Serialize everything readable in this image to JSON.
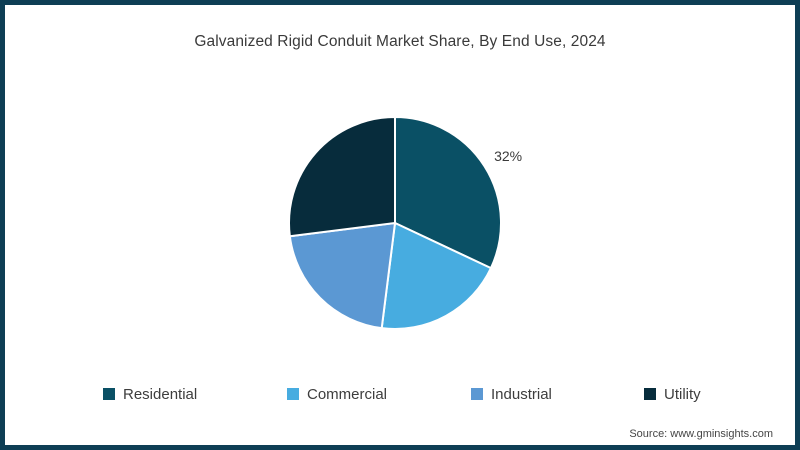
{
  "page": {
    "border_color": "#0e3e55",
    "background": "#ffffff"
  },
  "chart_data": {
    "type": "pie",
    "title": "Galvanized Rigid Conduit Market Share, By End Use, 2024",
    "series": [
      {
        "name": "Residential",
        "value": 32,
        "color": "#0a5065",
        "data_label": "32%"
      },
      {
        "name": "Commercial",
        "value": 20,
        "color": "#47ace0",
        "data_label": ""
      },
      {
        "name": "Industrial",
        "value": 21,
        "color": "#5b98d3",
        "data_label": ""
      },
      {
        "name": "Utility",
        "value": 27,
        "color": "#072c3c",
        "data_label": ""
      }
    ],
    "start_angle_deg": 0,
    "direction": "clockwise",
    "slice_border_color": "#ffffff",
    "legend_position": "bottom"
  },
  "footer": {
    "source": "Source: www.gminsights.com"
  }
}
